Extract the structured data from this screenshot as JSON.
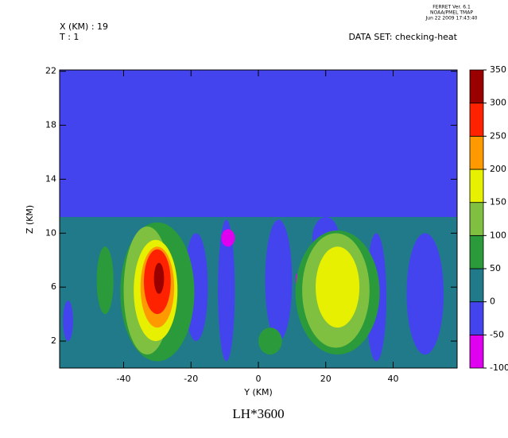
{
  "chart_data": {
    "type": "contour",
    "title": "LH*3600",
    "header": {
      "left": [
        "X (KM) : 19",
        "T : 1"
      ],
      "dataset": "DATA SET: checking-heat",
      "stamp": [
        "FERRET Ver. 6.1",
        "NOAA/PMEL TMAP",
        "Jun 22 2009 17:43:40"
      ]
    },
    "x_label": "Y (KM)",
    "y_label": "Z (KM)",
    "xlim": [
      -59,
      59
    ],
    "ylim": [
      0,
      22.1
    ],
    "xticks": [
      -40,
      -20,
      0,
      20,
      40
    ],
    "yticks": [
      2,
      6,
      10,
      14,
      18,
      22
    ],
    "levels": [
      -100,
      -50,
      0,
      50,
      100,
      150,
      200,
      250,
      300,
      350
    ],
    "level_colors": [
      "#e000f0",
      "#4444ee",
      "#217a8a",
      "#2a9a3a",
      "#80c040",
      "#e6f000",
      "#ff9900",
      "#ff2200",
      "#9a0000"
    ],
    "regions": [
      {
        "value": -50,
        "shape": "rect",
        "y": [
          -59,
          59
        ],
        "z": [
          0,
          22.1
        ]
      },
      {
        "value": 0,
        "shape": "rect",
        "y": [
          -59,
          59
        ],
        "z": [
          0,
          11.2
        ]
      },
      {
        "value": -50,
        "shape": "ellipse",
        "y": [
          -58,
          -55
        ],
        "z": [
          2,
          5
        ]
      },
      {
        "value": -50,
        "shape": "ellipse",
        "y": [
          -22,
          -15
        ],
        "z": [
          2,
          10
        ]
      },
      {
        "value": -50,
        "shape": "ellipse",
        "y": [
          -12,
          -7
        ],
        "z": [
          0.5,
          11
        ]
      },
      {
        "value": -50,
        "shape": "ellipse",
        "y": [
          2,
          10
        ],
        "z": [
          2,
          11
        ]
      },
      {
        "value": -50,
        "shape": "ellipse",
        "y": [
          16,
          24
        ],
        "z": [
          8,
          11.2
        ]
      },
      {
        "value": -50,
        "shape": "ellipse",
        "y": [
          32,
          38
        ],
        "z": [
          0.5,
          10
        ]
      },
      {
        "value": -50,
        "shape": "ellipse",
        "y": [
          44,
          55
        ],
        "z": [
          1,
          10
        ]
      },
      {
        "value": -100,
        "shape": "ellipse",
        "y": [
          -11,
          -7
        ],
        "z": [
          9,
          10.3
        ]
      },
      {
        "value": -100,
        "shape": "ellipse",
        "y": [
          11,
          12
        ],
        "z": [
          6,
          7
        ]
      },
      {
        "value": 50,
        "shape": "ellipse",
        "y": [
          -48,
          -43
        ],
        "z": [
          4,
          9
        ]
      },
      {
        "value": 50,
        "shape": "ellipse",
        "y": [
          -41,
          -19
        ],
        "z": [
          0.5,
          10.8
        ]
      },
      {
        "value": 50,
        "shape": "ellipse",
        "y": [
          11,
          36
        ],
        "z": [
          1,
          10.2
        ]
      },
      {
        "value": 50,
        "shape": "ellipse",
        "y": [
          0,
          7
        ],
        "z": [
          1,
          3
        ]
      },
      {
        "value": 100,
        "shape": "ellipse",
        "y": [
          -40,
          -26
        ],
        "z": [
          1,
          10.5
        ]
      },
      {
        "value": 100,
        "shape": "ellipse",
        "y": [
          13,
          33
        ],
        "z": [
          1.5,
          10
        ]
      },
      {
        "value": 150,
        "shape": "ellipse",
        "y": [
          -37,
          -24
        ],
        "z": [
          2,
          9.5
        ]
      },
      {
        "value": 150,
        "shape": "ellipse",
        "y": [
          17,
          30
        ],
        "z": [
          3,
          9
        ]
      },
      {
        "value": 200,
        "shape": "ellipse",
        "y": [
          -35,
          -25
        ],
        "z": [
          3,
          9
        ]
      },
      {
        "value": 250,
        "shape": "ellipse",
        "y": [
          -34,
          -26
        ],
        "z": [
          4,
          8.8
        ]
      },
      {
        "value": 300,
        "shape": "ellipse",
        "y": [
          -31,
          -28
        ],
        "z": [
          5.5,
          7.8
        ]
      }
    ]
  }
}
